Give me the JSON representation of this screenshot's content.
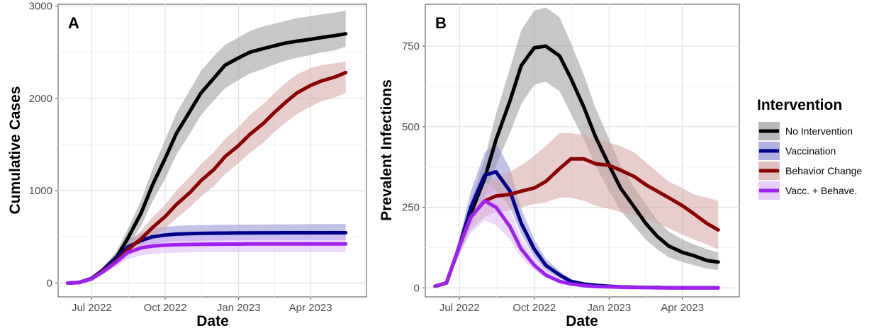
{
  "chart_data": [
    {
      "type": "line",
      "panel_label": "A",
      "xlabel": "Date",
      "ylabel": "Cumulative Cases",
      "ylim": [
        -150,
        3020
      ],
      "xlim": [
        "2022-05-20",
        "2023-06-10"
      ],
      "x_ticks": [
        {
          "date": "2022-07-01",
          "label": "Jul 2022"
        },
        {
          "date": "2022-10-01",
          "label": "Oct 2022"
        },
        {
          "date": "2023-01-01",
          "label": "Jan 2023"
        },
        {
          "date": "2023-04-01",
          "label": "Apr 2023"
        }
      ],
      "y_ticks": [
        {
          "value": 0,
          "label": "0"
        },
        {
          "value": 1000,
          "label": "1000"
        },
        {
          "value": 2000,
          "label": "2000"
        },
        {
          "value": 3000,
          "label": "3000"
        }
      ],
      "x": [
        "2022-06-01",
        "2022-06-15",
        "2022-07-01",
        "2022-07-15",
        "2022-08-01",
        "2022-08-15",
        "2022-09-01",
        "2022-09-15",
        "2022-10-01",
        "2022-10-15",
        "2022-11-01",
        "2022-11-15",
        "2022-12-01",
        "2022-12-15",
        "2023-01-01",
        "2023-01-15",
        "2023-02-01",
        "2023-02-15",
        "2023-03-01",
        "2023-03-15",
        "2023-04-01",
        "2023-04-15",
        "2023-05-01",
        "2023-05-15"
      ],
      "series": [
        {
          "name": "No Intervention",
          "values": [
            0,
            5,
            50,
            140,
            280,
            480,
            760,
            1060,
            1350,
            1620,
            1860,
            2060,
            2220,
            2360,
            2440,
            2500,
            2540,
            2570,
            2600,
            2620,
            2640,
            2660,
            2680,
            2700
          ],
          "lower": [
            0,
            5,
            40,
            110,
            220,
            380,
            620,
            880,
            1130,
            1390,
            1620,
            1820,
            1980,
            2110,
            2200,
            2270,
            2320,
            2370,
            2410,
            2440,
            2470,
            2500,
            2520,
            2560
          ],
          "upper": [
            0,
            6,
            60,
            170,
            340,
            580,
            900,
            1230,
            1550,
            1840,
            2090,
            2300,
            2460,
            2580,
            2660,
            2730,
            2780,
            2810,
            2840,
            2870,
            2890,
            2910,
            2930,
            2950
          ]
        },
        {
          "name": "Vaccination",
          "values": [
            0,
            5,
            50,
            140,
            270,
            390,
            460,
            500,
            520,
            530,
            535,
            538,
            540,
            541,
            542,
            543,
            544,
            544,
            545,
            545,
            545,
            545,
            545,
            545
          ],
          "lower": [
            0,
            5,
            40,
            110,
            220,
            320,
            380,
            420,
            440,
            450,
            455,
            458,
            460,
            461,
            462,
            463,
            464,
            464,
            465,
            465,
            465,
            465,
            465,
            465
          ],
          "upper": [
            0,
            6,
            60,
            170,
            320,
            460,
            540,
            590,
            610,
            620,
            625,
            628,
            630,
            631,
            632,
            633,
            634,
            635,
            636,
            637,
            638,
            639,
            640,
            640
          ]
        },
        {
          "name": "Behavior Change",
          "values": [
            0,
            5,
            45,
            130,
            240,
            360,
            480,
            600,
            720,
            850,
            980,
            1110,
            1230,
            1370,
            1490,
            1610,
            1730,
            1850,
            1960,
            2060,
            2140,
            2190,
            2230,
            2280
          ],
          "lower": [
            0,
            4,
            35,
            100,
            190,
            290,
            390,
            490,
            590,
            700,
            820,
            940,
            1050,
            1180,
            1300,
            1410,
            1520,
            1640,
            1740,
            1830,
            1910,
            1970,
            2010,
            2060
          ],
          "upper": [
            0,
            6,
            55,
            160,
            290,
            430,
            570,
            710,
            850,
            1000,
            1150,
            1290,
            1420,
            1560,
            1690,
            1820,
            1940,
            2060,
            2170,
            2260,
            2330,
            2360,
            2380,
            2400
          ]
        },
        {
          "name": "Vacc. + Behave.",
          "values": [
            0,
            5,
            45,
            120,
            230,
            330,
            380,
            400,
            410,
            415,
            418,
            420,
            421,
            422,
            422,
            423,
            423,
            423,
            424,
            424,
            424,
            424,
            424,
            424
          ],
          "lower": [
            0,
            4,
            35,
            95,
            180,
            260,
            300,
            315,
            325,
            330,
            332,
            334,
            335,
            335,
            336,
            336,
            336,
            337,
            337,
            337,
            337,
            337,
            337,
            337
          ],
          "upper": [
            0,
            6,
            55,
            145,
            280,
            400,
            460,
            485,
            497,
            503,
            506,
            508,
            509,
            510,
            510,
            511,
            511,
            511,
            512,
            512,
            512,
            512,
            512,
            512
          ]
        }
      ]
    },
    {
      "type": "line",
      "panel_label": "B",
      "xlabel": "Date",
      "ylabel": "Prevalent Infections",
      "ylim": [
        -28,
        880
      ],
      "xlim": [
        "2022-05-20",
        "2023-06-10"
      ],
      "x_ticks": [
        {
          "date": "2022-07-01",
          "label": "Jul 2022"
        },
        {
          "date": "2022-10-01",
          "label": "Oct 2022"
        },
        {
          "date": "2023-01-01",
          "label": "Jan 2023"
        },
        {
          "date": "2023-04-01",
          "label": "Apr 2023"
        }
      ],
      "y_ticks": [
        {
          "value": 0,
          "label": "0"
        },
        {
          "value": 250,
          "label": "250"
        },
        {
          "value": 500,
          "label": "500"
        },
        {
          "value": 750,
          "label": "750"
        }
      ],
      "x": [
        "2022-06-01",
        "2022-06-15",
        "2022-07-01",
        "2022-07-15",
        "2022-08-01",
        "2022-08-15",
        "2022-09-01",
        "2022-09-15",
        "2022-10-01",
        "2022-10-15",
        "2022-11-01",
        "2022-11-15",
        "2022-12-01",
        "2022-12-15",
        "2023-01-01",
        "2023-01-15",
        "2023-02-01",
        "2023-02-15",
        "2023-03-01",
        "2023-03-15",
        "2023-04-01",
        "2023-04-15",
        "2023-05-01",
        "2023-05-15"
      ],
      "series": [
        {
          "name": "No Intervention",
          "values": [
            5,
            15,
            130,
            230,
            340,
            460,
            580,
            690,
            745,
            750,
            720,
            650,
            560,
            470,
            380,
            310,
            250,
            200,
            160,
            130,
            110,
            100,
            85,
            80
          ],
          "lower": [
            3,
            10,
            105,
            190,
            280,
            380,
            480,
            570,
            630,
            640,
            610,
            540,
            460,
            380,
            300,
            240,
            190,
            150,
            120,
            95,
            80,
            70,
            60,
            55
          ],
          "upper": [
            7,
            20,
            155,
            270,
            400,
            540,
            680,
            800,
            860,
            870,
            840,
            760,
            660,
            560,
            460,
            380,
            310,
            260,
            210,
            175,
            150,
            135,
            120,
            110
          ]
        },
        {
          "name": "Vaccination",
          "values": [
            5,
            15,
            130,
            250,
            350,
            360,
            300,
            200,
            120,
            70,
            40,
            20,
            12,
            8,
            5,
            3,
            2,
            1,
            1,
            0,
            0,
            0,
            0,
            0
          ],
          "lower": [
            3,
            10,
            105,
            200,
            290,
            300,
            250,
            165,
            95,
            55,
            30,
            15,
            9,
            6,
            4,
            2,
            1,
            1,
            0,
            0,
            0,
            0,
            0,
            0
          ],
          "upper": [
            7,
            20,
            155,
            300,
            420,
            450,
            370,
            245,
            150,
            90,
            52,
            28,
            16,
            10,
            7,
            4,
            3,
            2,
            1,
            1,
            0,
            0,
            0,
            0
          ]
        },
        {
          "name": "Behavior Change",
          "values": [
            5,
            15,
            130,
            220,
            270,
            285,
            290,
            300,
            310,
            330,
            370,
            400,
            400,
            385,
            380,
            365,
            345,
            320,
            300,
            280,
            255,
            230,
            200,
            180
          ],
          "lower": [
            3,
            10,
            105,
            180,
            220,
            235,
            240,
            250,
            260,
            265,
            280,
            280,
            270,
            255,
            245,
            235,
            225,
            215,
            200,
            185,
            165,
            150,
            135,
            120
          ],
          "upper": [
            7,
            20,
            155,
            260,
            320,
            345,
            360,
            380,
            410,
            440,
            480,
            480,
            475,
            460,
            450,
            440,
            420,
            390,
            360,
            330,
            310,
            290,
            280,
            270
          ]
        },
        {
          "name": "Vacc. + Behave.",
          "values": [
            5,
            15,
            130,
            220,
            270,
            250,
            190,
            120,
            70,
            40,
            20,
            12,
            7,
            4,
            3,
            2,
            1,
            1,
            0,
            0,
            0,
            0,
            0,
            0
          ],
          "lower": [
            3,
            10,
            105,
            170,
            210,
            195,
            150,
            95,
            55,
            30,
            15,
            8,
            5,
            3,
            2,
            1,
            1,
            0,
            0,
            0,
            0,
            0,
            0,
            0
          ],
          "upper": [
            7,
            20,
            155,
            270,
            330,
            305,
            240,
            155,
            92,
            55,
            30,
            18,
            11,
            7,
            5,
            3,
            2,
            1,
            1,
            0,
            0,
            0,
            0,
            0
          ]
        }
      ]
    }
  ],
  "legend": {
    "title": "Intervention",
    "entries": [
      {
        "label": "No Intervention",
        "color": "#000000",
        "ribbon": "#999999"
      },
      {
        "label": "Vaccination",
        "color": "#00008b",
        "ribbon": "#8f8fd6"
      },
      {
        "label": "Behavior Change",
        "color": "#8b0000",
        "ribbon": "#d6a4a4"
      },
      {
        "label": "Vacc. + Behave.",
        "color": "#a020f0",
        "ribbon": "#dbb8f5"
      }
    ]
  }
}
